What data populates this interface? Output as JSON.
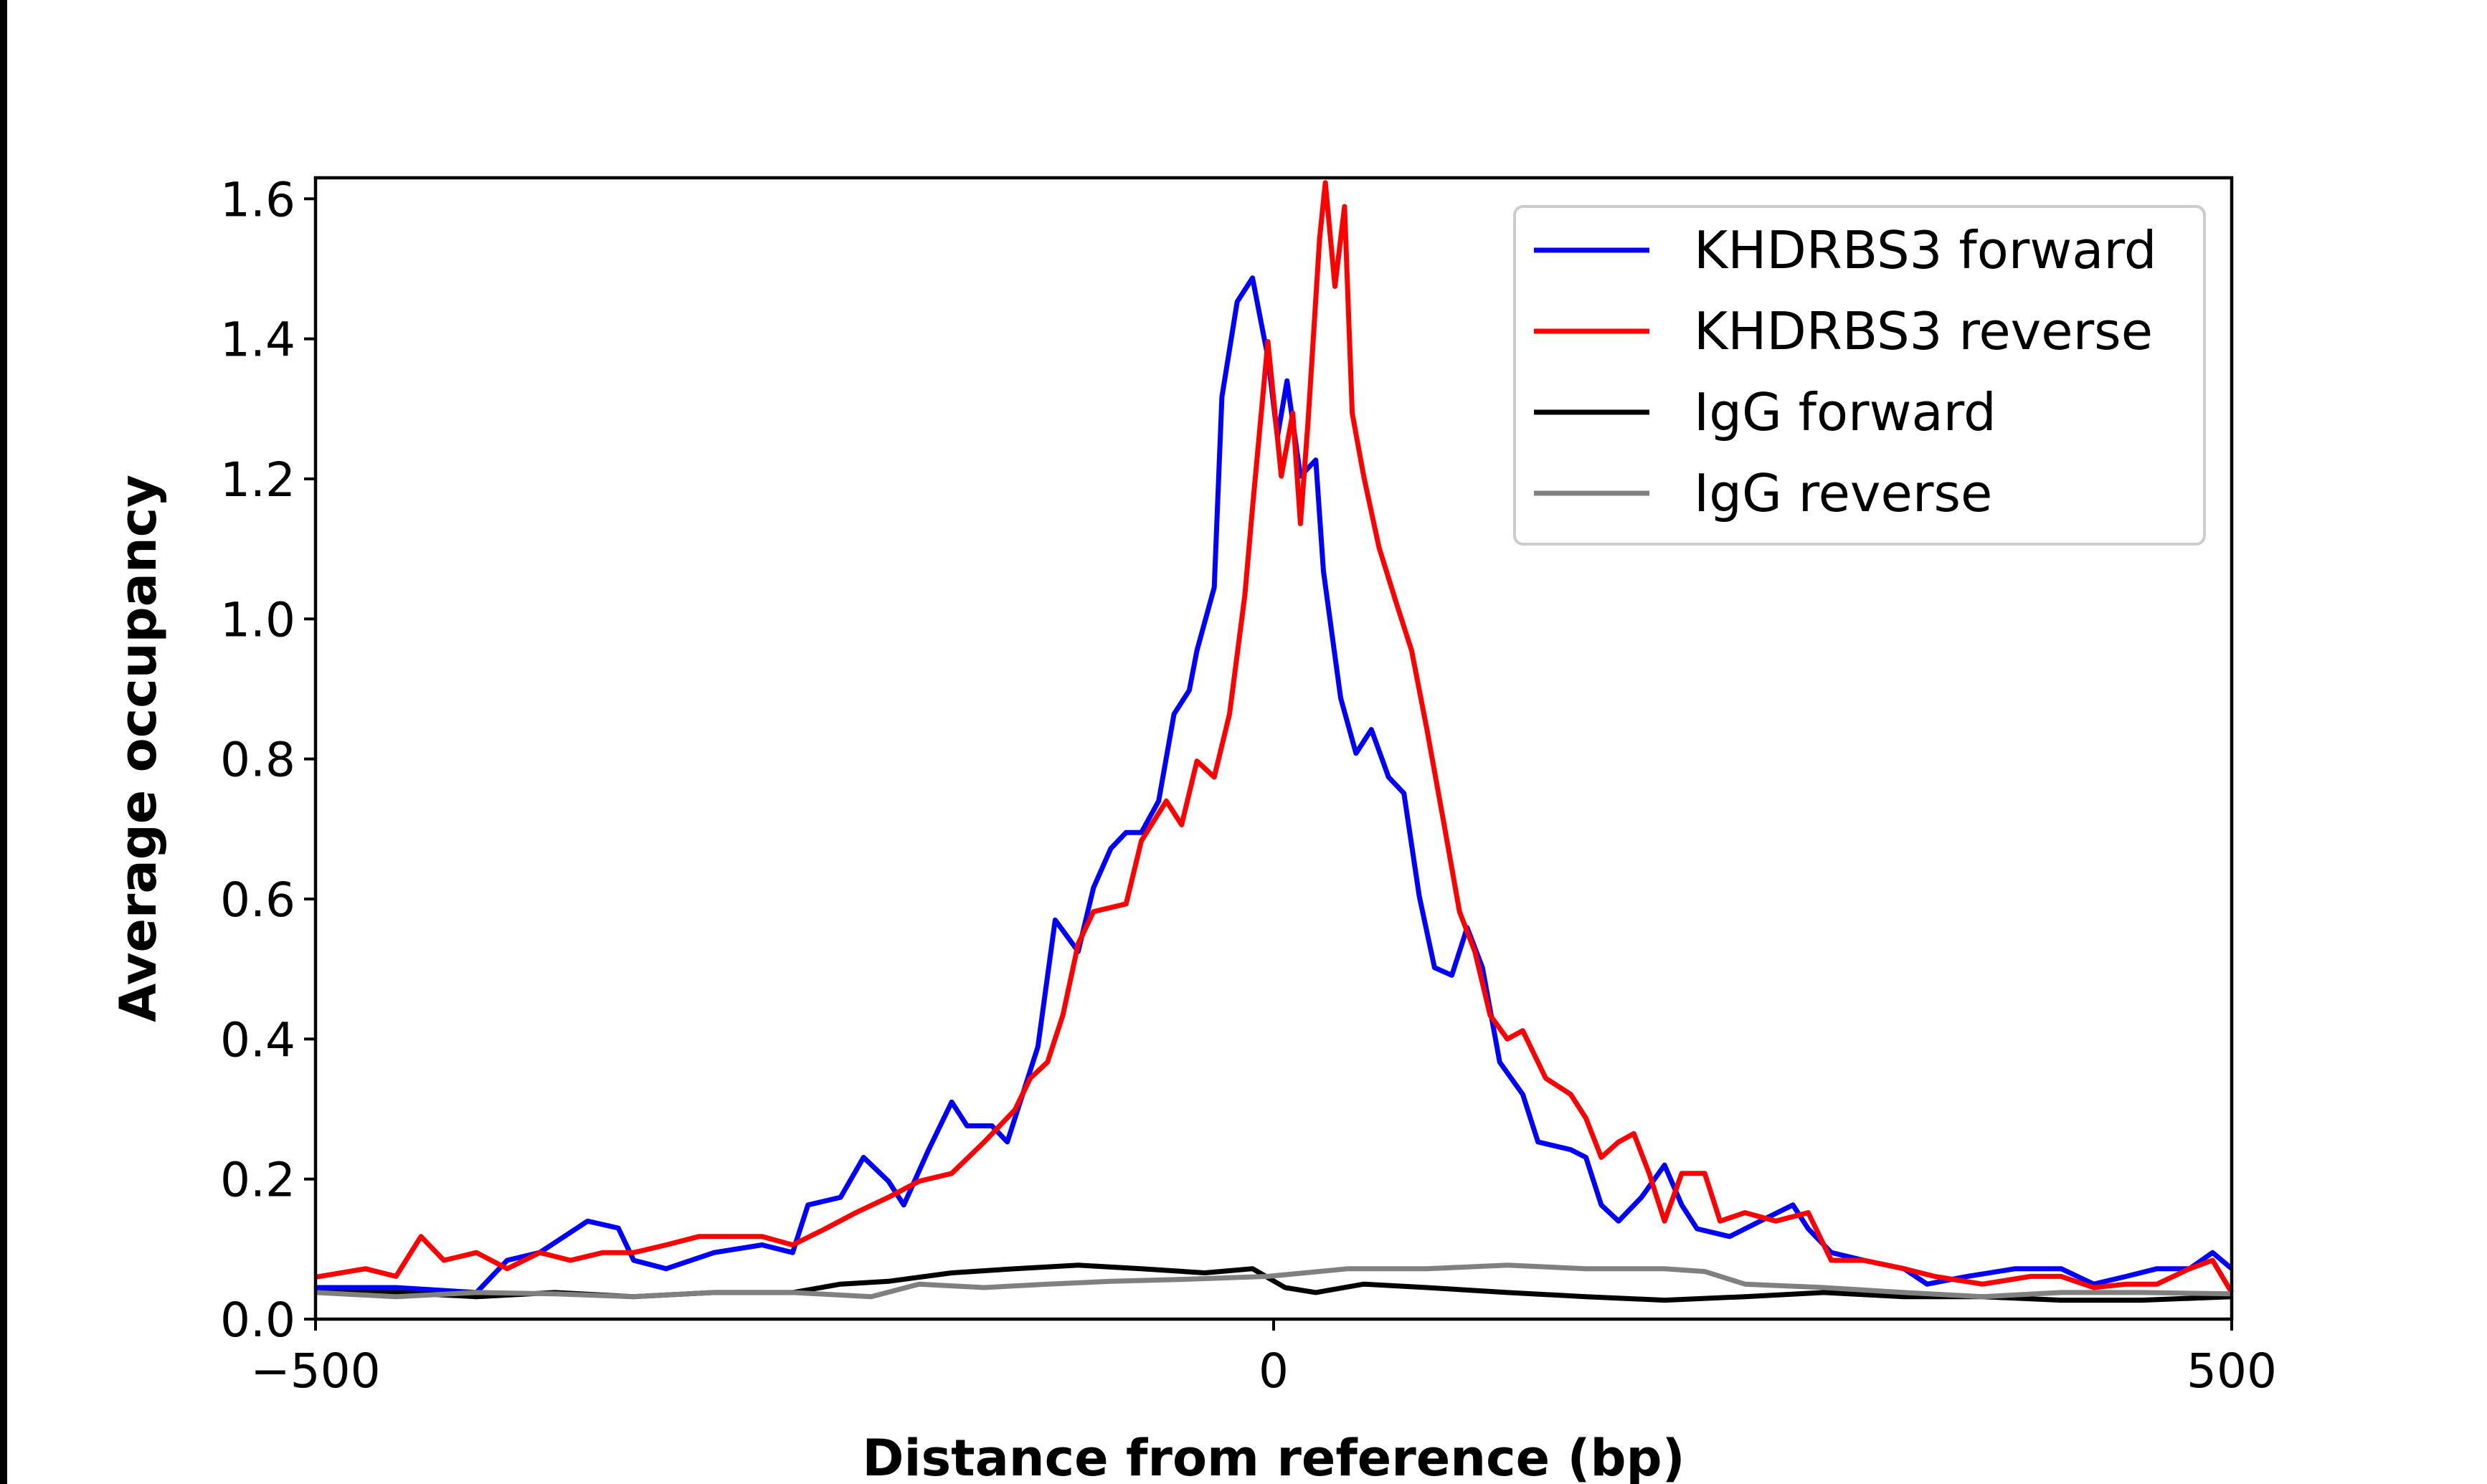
{
  "chart_data": {
    "type": "line",
    "title": "",
    "xlabel": "Distance from reference (bp)",
    "ylabel": "Average occupancy",
    "xlim": [
      -500,
      500
    ],
    "ylim": [
      0,
      1.63
    ],
    "xticks": [
      -500,
      0,
      500
    ],
    "xtick_labels": [
      "−500",
      "0",
      "500"
    ],
    "yticks": [
      0,
      0.2,
      0.4,
      0.6,
      0.8,
      1.0,
      1.2,
      1.4,
      1.6
    ],
    "ytick_labels": [
      "0.0",
      "0.2",
      "0.4",
      "0.6",
      "0.8",
      "1.0",
      "1.2",
      "1.4",
      "1.6"
    ],
    "grid": false,
    "legend_position": "top-right",
    "series": [
      {
        "name": "KHDRBS3 forward",
        "color": "#0000ff",
        "x": [
          -500,
          -458,
          -416,
          -400,
          -383,
          -358,
          -342,
          -334,
          -317,
          -292,
          -267,
          -251,
          -243,
          -226,
          -214,
          -201,
          -193,
          -180,
          -168,
          -160,
          -147,
          -139,
          -131,
          -123,
          -114,
          -102,
          -94,
          -85,
          -77,
          -69,
          -60,
          -52,
          -44,
          -40,
          -31,
          -27,
          -19,
          -11,
          -7,
          -3,
          2,
          7,
          14,
          22,
          26,
          35,
          43,
          51,
          60,
          68,
          76,
          84,
          93,
          101,
          109,
          118,
          130,
          138,
          155,
          163,
          171,
          180,
          192,
          204,
          213,
          221,
          238,
          254,
          271,
          279,
          291,
          308,
          329,
          341,
          362,
          387,
          411,
          428,
          445,
          461,
          478,
          490,
          500
        ],
        "y": [
          0.045,
          0.045,
          0.038,
          0.084,
          0.095,
          0.14,
          0.13,
          0.084,
          0.072,
          0.095,
          0.106,
          0.095,
          0.163,
          0.174,
          0.231,
          0.197,
          0.163,
          0.242,
          0.31,
          0.276,
          0.276,
          0.253,
          0.321,
          0.389,
          0.57,
          0.525,
          0.616,
          0.672,
          0.695,
          0.695,
          0.74,
          0.864,
          0.898,
          0.955,
          1.045,
          1.317,
          1.453,
          1.487,
          1.43,
          1.374,
          1.26,
          1.34,
          1.204,
          1.227,
          1.068,
          0.887,
          0.808,
          0.842,
          0.774,
          0.751,
          0.604,
          0.502,
          0.491,
          0.559,
          0.502,
          0.367,
          0.321,
          0.253,
          0.242,
          0.231,
          0.163,
          0.14,
          0.174,
          0.22,
          0.163,
          0.129,
          0.118,
          0.14,
          0.163,
          0.129,
          0.095,
          0.084,
          0.072,
          0.05,
          0.061,
          0.072,
          0.072,
          0.05,
          0.061,
          0.072,
          0.072,
          0.095,
          0.072
        ]
      },
      {
        "name": "KHDRBS3 reverse",
        "color": "#ff0000",
        "x": [
          -500,
          -474,
          -458,
          -445,
          -433,
          -416,
          -400,
          -383,
          -367,
          -350,
          -334,
          -317,
          -300,
          -284,
          -267,
          -251,
          -234,
          -218,
          -201,
          -185,
          -168,
          -151,
          -135,
          -127,
          -118,
          -110,
          -102,
          -94,
          -77,
          -69,
          -56,
          -48,
          -40,
          -31,
          -23,
          -15,
          -11,
          -3,
          4,
          10,
          14,
          18,
          24,
          27,
          32,
          37,
          41,
          47,
          55,
          64,
          72,
          80,
          89,
          97,
          105,
          113,
          122,
          130,
          142,
          155,
          163,
          171,
          180,
          188,
          196,
          204,
          213,
          225,
          233,
          246,
          262,
          279,
          291,
          308,
          329,
          345,
          370,
          395,
          411,
          428,
          445,
          461,
          478,
          490,
          500
        ],
        "y": [
          0.06,
          0.072,
          0.061,
          0.118,
          0.084,
          0.095,
          0.072,
          0.095,
          0.084,
          0.095,
          0.095,
          0.106,
          0.118,
          0.118,
          0.118,
          0.106,
          0.129,
          0.152,
          0.174,
          0.197,
          0.208,
          0.253,
          0.299,
          0.344,
          0.367,
          0.434,
          0.536,
          0.582,
          0.593,
          0.683,
          0.74,
          0.706,
          0.797,
          0.774,
          0.864,
          1.034,
          1.159,
          1.396,
          1.204,
          1.294,
          1.136,
          1.283,
          1.543,
          1.623,
          1.475,
          1.589,
          1.294,
          1.204,
          1.102,
          1.023,
          0.955,
          0.842,
          0.706,
          0.582,
          0.525,
          0.434,
          0.4,
          0.412,
          0.344,
          0.321,
          0.287,
          0.231,
          0.253,
          0.265,
          0.208,
          0.14,
          0.208,
          0.208,
          0.14,
          0.152,
          0.14,
          0.152,
          0.084,
          0.084,
          0.072,
          0.061,
          0.05,
          0.061,
          0.061,
          0.045,
          0.05,
          0.05,
          0.072,
          0.084,
          0.038
        ]
      },
      {
        "name": "IgG forward",
        "color": "#000000",
        "x": [
          -500,
          -458,
          -416,
          -375,
          -334,
          -292,
          -251,
          -226,
          -201,
          -168,
          -135,
          -102,
          -69,
          -36,
          -11,
          6,
          22,
          47,
          80,
          122,
          163,
          204,
          246,
          287,
          329,
          370,
          411,
          453,
          500
        ],
        "y": [
          0.038,
          0.038,
          0.032,
          0.038,
          0.032,
          0.038,
          0.038,
          0.05,
          0.054,
          0.066,
          0.072,
          0.077,
          0.072,
          0.066,
          0.072,
          0.045,
          0.038,
          0.05,
          0.045,
          0.038,
          0.032,
          0.027,
          0.032,
          0.038,
          0.032,
          0.032,
          0.027,
          0.027,
          0.032
        ]
      },
      {
        "name": "IgG reverse",
        "color": "#808080",
        "x": [
          -500,
          -458,
          -416,
          -375,
          -334,
          -292,
          -251,
          -210,
          -185,
          -151,
          -118,
          -85,
          -44,
          -3,
          39,
          80,
          122,
          163,
          204,
          225,
          246,
          287,
          329,
          370,
          411,
          453,
          500
        ],
        "y": [
          0.038,
          0.032,
          0.038,
          0.036,
          0.032,
          0.038,
          0.038,
          0.032,
          0.05,
          0.045,
          0.05,
          0.054,
          0.057,
          0.061,
          0.072,
          0.072,
          0.077,
          0.072,
          0.072,
          0.068,
          0.05,
          0.045,
          0.038,
          0.032,
          0.038,
          0.038,
          0.036
        ]
      }
    ]
  }
}
